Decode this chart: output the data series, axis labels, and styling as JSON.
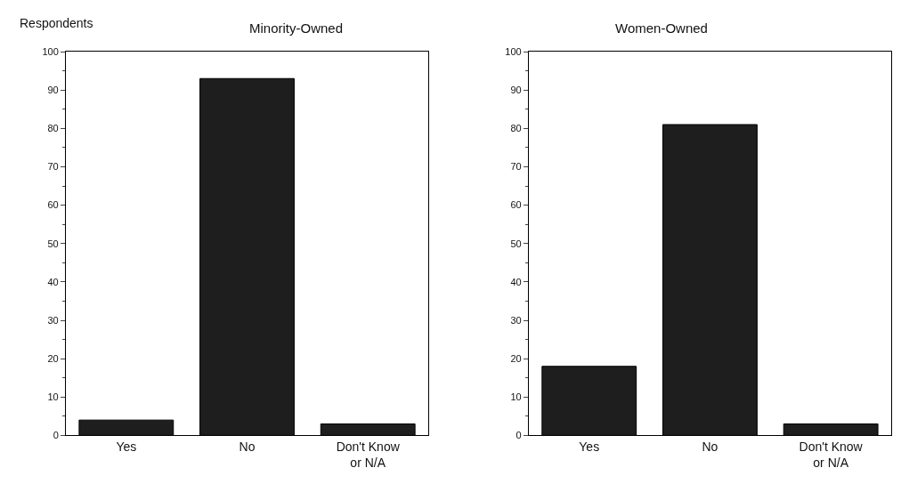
{
  "chart_data": [
    {
      "type": "bar",
      "title": "Minority-Owned",
      "annotations": [
        "Respondents"
      ],
      "categories": [
        "Yes",
        "No",
        "Don't Know\nor N/A"
      ],
      "values": [
        4,
        93,
        3
      ],
      "color": "#1e1e1e",
      "ylim": [
        0,
        100
      ],
      "yticks": [
        0,
        10,
        20,
        30,
        40,
        50,
        60,
        70,
        80,
        90,
        100
      ],
      "grid": false
    },
    {
      "type": "bar",
      "title": "Women-Owned",
      "categories": [
        "Yes",
        "No",
        "Don't Know\nor N/A"
      ],
      "values": [
        18,
        81,
        3
      ],
      "color": "#1e1e1e",
      "ylim": [
        0,
        100
      ],
      "yticks": [
        0,
        10,
        20,
        30,
        40,
        50,
        60,
        70,
        80,
        90,
        100
      ],
      "grid": false
    }
  ]
}
